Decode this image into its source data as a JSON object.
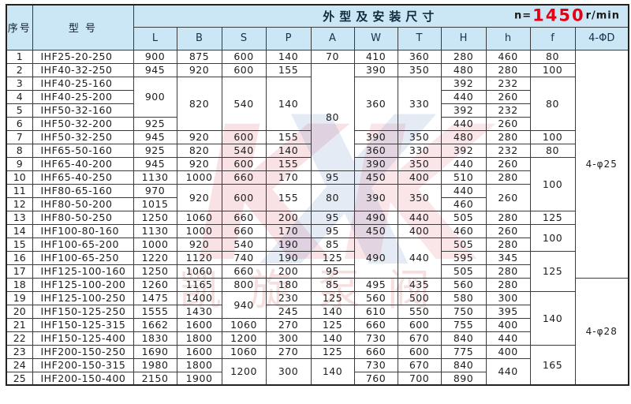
{
  "colors": {
    "header_bg": "#cbe6f5",
    "border": "#3b3b3b",
    "text": "#1d1d1d",
    "speed_red": "#e60012",
    "watermark_red": "#d7263d",
    "watermark_blue": "#2e5fb5",
    "watermark_pink": "#e08f8f"
  },
  "header": {
    "col_no": "序号",
    "col_model": "型  号",
    "dim_title": "外型及安装尺寸",
    "speed_prefix": "n=",
    "speed_value": "1450",
    "speed_suffix": "r/min",
    "dim_cols": [
      "L",
      "B",
      "S",
      "P",
      "A",
      "W",
      "T",
      "H",
      "h",
      "f",
      "4-ΦD"
    ]
  },
  "watermark": {
    "letter1": "K",
    "letter2": "X",
    "letter3": "K",
    "caption": "凯旋泵阀"
  },
  "table": {
    "rows": [
      {
        "no": "1",
        "model": "IHF25-20-250",
        "cells": [
          [
            "L",
            "900",
            1
          ],
          [
            "B",
            "875",
            1
          ],
          [
            "S",
            "600",
            1
          ],
          [
            "P",
            "140",
            1
          ],
          [
            "A",
            "70",
            1
          ],
          [
            "W",
            "410",
            1
          ],
          [
            "T",
            "360",
            1
          ],
          [
            "H",
            "280",
            1
          ],
          [
            "h",
            "460",
            1
          ],
          [
            "f",
            "80",
            1
          ],
          [
            "D",
            "4-φ25",
            17
          ]
        ]
      },
      {
        "no": "2",
        "model": "IHF40-32-250",
        "cells": [
          [
            "L",
            "945",
            1
          ],
          [
            "B",
            "920",
            1
          ],
          [
            "S",
            "600",
            1
          ],
          [
            "P",
            "155",
            1
          ],
          [
            "A",
            "80",
            8
          ],
          [
            "W",
            "390",
            1
          ],
          [
            "T",
            "350",
            1
          ],
          [
            "H",
            "480",
            1
          ],
          [
            "h",
            "280",
            1
          ],
          [
            "f",
            "100",
            1
          ]
        ]
      },
      {
        "no": "3",
        "model": "IHF40-25-160",
        "cells": [
          [
            "L",
            "900",
            3
          ],
          [
            "B",
            "820",
            4
          ],
          [
            "S",
            "540",
            4
          ],
          [
            "P",
            "140",
            4
          ],
          [
            "W",
            "360",
            4
          ],
          [
            "T",
            "330",
            4
          ],
          [
            "H",
            "392",
            1
          ],
          [
            "h",
            "232",
            1
          ],
          [
            "f",
            "80",
            4
          ]
        ]
      },
      {
        "no": "4",
        "model": "IHF40-25-200",
        "cells": [
          [
            "H",
            "440",
            1
          ],
          [
            "h",
            "260",
            1
          ]
        ]
      },
      {
        "no": "5",
        "model": "IHF50-32-160",
        "cells": [
          [
            "H",
            "392",
            1
          ],
          [
            "h",
            "232",
            1
          ]
        ]
      },
      {
        "no": "6",
        "model": "IHF50-32-200",
        "cells": [
          [
            "L",
            "925",
            1
          ],
          [
            "H",
            "440",
            1
          ],
          [
            "h",
            "260",
            1
          ]
        ]
      },
      {
        "no": "7",
        "model": "IHF50-32-250",
        "cells": [
          [
            "L",
            "945",
            1
          ],
          [
            "B",
            "920",
            1
          ],
          [
            "S",
            "600",
            1
          ],
          [
            "P",
            "155",
            1
          ],
          [
            "W",
            "390",
            1
          ],
          [
            "T",
            "350",
            1
          ],
          [
            "H",
            "480",
            1
          ],
          [
            "h",
            "280",
            1
          ],
          [
            "f",
            "100",
            1
          ]
        ]
      },
      {
        "no": "8",
        "model": "IHF65-50-160",
        "cells": [
          [
            "L",
            "925",
            1
          ],
          [
            "B",
            "820",
            1
          ],
          [
            "S",
            "540",
            1
          ],
          [
            "P",
            "140",
            1
          ],
          [
            "W",
            "360",
            1
          ],
          [
            "T",
            "330",
            1
          ],
          [
            "H",
            "392",
            1
          ],
          [
            "h",
            "232",
            1
          ],
          [
            "f",
            "80",
            1
          ]
        ]
      },
      {
        "no": "9",
        "model": "IHF65-40-200",
        "cells": [
          [
            "L",
            "945",
            1
          ],
          [
            "B",
            "920",
            1
          ],
          [
            "S",
            "600",
            1
          ],
          [
            "P",
            "155",
            1
          ],
          [
            "W",
            "390",
            1
          ],
          [
            "T",
            "350",
            1
          ],
          [
            "H",
            "440",
            1
          ],
          [
            "h",
            "260",
            1
          ],
          [
            "f",
            "100",
            4
          ]
        ]
      },
      {
        "no": "10",
        "model": "IHF65-40-250",
        "cells": [
          [
            "L",
            "1130",
            1
          ],
          [
            "B",
            "1000",
            1
          ],
          [
            "S",
            "660",
            1
          ],
          [
            "P",
            "170",
            1
          ],
          [
            "A",
            "95",
            1
          ],
          [
            "W",
            "450",
            1
          ],
          [
            "T",
            "400",
            1
          ],
          [
            "H",
            "510",
            1
          ],
          [
            "h",
            "280",
            1
          ]
        ]
      },
      {
        "no": "11",
        "model": "IHF80-65-160",
        "cells": [
          [
            "L",
            "970",
            1
          ],
          [
            "B",
            "920",
            2
          ],
          [
            "S",
            "600",
            2
          ],
          [
            "P",
            "155",
            2
          ],
          [
            "A",
            "80",
            2
          ],
          [
            "W",
            "390",
            2
          ],
          [
            "T",
            "350",
            2
          ],
          [
            "H",
            "440",
            1
          ],
          [
            "h",
            "260",
            2
          ]
        ]
      },
      {
        "no": "12",
        "model": "IHF80-50-200",
        "cells": [
          [
            "L",
            "1015",
            1
          ],
          [
            "H",
            "460",
            1
          ]
        ]
      },
      {
        "no": "13",
        "model": "IHF80-50-250",
        "cells": [
          [
            "L",
            "1250",
            1
          ],
          [
            "B",
            "1060",
            1
          ],
          [
            "S",
            "660",
            1
          ],
          [
            "P",
            "200",
            1
          ],
          [
            "A",
            "95",
            1
          ],
          [
            "W",
            "490",
            1
          ],
          [
            "T",
            "440",
            1
          ],
          [
            "H",
            "505",
            1
          ],
          [
            "h",
            "280",
            1
          ],
          [
            "f",
            "125",
            1
          ]
        ]
      },
      {
        "no": "14",
        "model": "IHF100-80-160",
        "cells": [
          [
            "L",
            "1130",
            1
          ],
          [
            "B",
            "1000",
            1
          ],
          [
            "S",
            "660",
            1
          ],
          [
            "P",
            "170",
            1
          ],
          [
            "A",
            "95",
            1
          ],
          [
            "W",
            "450",
            1
          ],
          [
            "T",
            "400",
            1
          ],
          [
            "H",
            "460",
            1
          ],
          [
            "h",
            "260",
            1
          ],
          [
            "f",
            "100",
            2
          ]
        ]
      },
      {
        "no": "15",
        "model": "IHF100-65-200",
        "cells": [
          [
            "L",
            "1000",
            1
          ],
          [
            "B",
            "920",
            1
          ],
          [
            "S",
            "540",
            1
          ],
          [
            "P",
            "190",
            1
          ],
          [
            "A",
            "85",
            1
          ],
          [
            "W",
            "490",
            3
          ],
          [
            "T",
            "440",
            3
          ],
          [
            "H",
            "505",
            1
          ],
          [
            "h",
            "280",
            1
          ]
        ]
      },
      {
        "no": "16",
        "model": "IHF100-65-250",
        "cells": [
          [
            "L",
            "1220",
            1
          ],
          [
            "B",
            "1120",
            1
          ],
          [
            "S",
            "740",
            1
          ],
          [
            "P",
            "190",
            1
          ],
          [
            "A",
            "125",
            1
          ],
          [
            "H",
            "595",
            1
          ],
          [
            "h",
            "345",
            1
          ],
          [
            "f",
            "125",
            3
          ]
        ]
      },
      {
        "no": "17",
        "model": "IHF125-100-160",
        "cells": [
          [
            "L",
            "1250",
            1
          ],
          [
            "B",
            "1060",
            1
          ],
          [
            "S",
            "660",
            1
          ],
          [
            "P",
            "200",
            1
          ],
          [
            "A",
            "95",
            1
          ],
          [
            "H",
            "505",
            1
          ],
          [
            "h",
            "280",
            1
          ]
        ]
      },
      {
        "no": "18",
        "model": "IHF125-100-200",
        "cells": [
          [
            "L",
            "1260",
            1
          ],
          [
            "B",
            "1165",
            1
          ],
          [
            "S",
            "800",
            1
          ],
          [
            "P",
            "180",
            1
          ],
          [
            "A",
            "85",
            1
          ],
          [
            "W",
            "495",
            1
          ],
          [
            "T",
            "435",
            1
          ],
          [
            "H",
            "560",
            1
          ],
          [
            "h",
            "280",
            1
          ],
          [
            "D",
            "4-φ28",
            8
          ]
        ]
      },
      {
        "no": "19",
        "model": "IHF125-100-250",
        "cells": [
          [
            "L",
            "1475",
            1
          ],
          [
            "B",
            "1400",
            1
          ],
          [
            "S",
            "940",
            2
          ],
          [
            "P",
            "230",
            1
          ],
          [
            "A",
            "125",
            1
          ],
          [
            "W",
            "560",
            1
          ],
          [
            "T",
            "500",
            1
          ],
          [
            "H",
            "580",
            1
          ],
          [
            "h",
            "300",
            1
          ],
          [
            "f",
            "140",
            4
          ]
        ]
      },
      {
        "no": "20",
        "model": "IHF150-125-250",
        "cells": [
          [
            "L",
            "1555",
            1
          ],
          [
            "B",
            "1430",
            1
          ],
          [
            "P",
            "245",
            1
          ],
          [
            "A",
            "140",
            1
          ],
          [
            "W",
            "610",
            1
          ],
          [
            "T",
            "550",
            1
          ],
          [
            "H",
            "750",
            1
          ],
          [
            "h",
            "395",
            1
          ]
        ]
      },
      {
        "no": "21",
        "model": "IHF150-125-315",
        "cells": [
          [
            "L",
            "1662",
            1
          ],
          [
            "B",
            "1600",
            1
          ],
          [
            "S",
            "1060",
            1
          ],
          [
            "P",
            "270",
            1
          ],
          [
            "A",
            "125",
            1
          ],
          [
            "W",
            "660",
            1
          ],
          [
            "T",
            "600",
            1
          ],
          [
            "H",
            "755",
            1
          ],
          [
            "h",
            "400",
            1
          ]
        ]
      },
      {
        "no": "22",
        "model": "IHF150-125-400",
        "cells": [
          [
            "L",
            "1830",
            1
          ],
          [
            "B",
            "1800",
            1
          ],
          [
            "S",
            "1200",
            1
          ],
          [
            "P",
            "300",
            1
          ],
          [
            "A",
            "140",
            1
          ],
          [
            "W",
            "730",
            1
          ],
          [
            "T",
            "670",
            1
          ],
          [
            "H",
            "840",
            1
          ],
          [
            "h",
            "440",
            1
          ]
        ]
      },
      {
        "no": "23",
        "model": "IHF200-150-250",
        "cells": [
          [
            "L",
            "1690",
            1
          ],
          [
            "B",
            "1600",
            1
          ],
          [
            "S",
            "1060",
            1
          ],
          [
            "P",
            "270",
            1
          ],
          [
            "A",
            "125",
            1
          ],
          [
            "W",
            "660",
            1
          ],
          [
            "T",
            "600",
            1
          ],
          [
            "H",
            "775",
            1
          ],
          [
            "h",
            "400",
            1
          ],
          [
            "f",
            "165",
            3
          ]
        ]
      },
      {
        "no": "24",
        "model": "IHF200-150-315",
        "cells": [
          [
            "L",
            "1980",
            1
          ],
          [
            "B",
            "1800",
            1
          ],
          [
            "S",
            "1200",
            2
          ],
          [
            "P",
            "300",
            2
          ],
          [
            "A",
            "140",
            2
          ],
          [
            "W",
            "730",
            1
          ],
          [
            "T",
            "670",
            1
          ],
          [
            "H",
            "840",
            1
          ],
          [
            "h",
            "440",
            2
          ]
        ]
      },
      {
        "no": "25",
        "model": "IHF200-150-400",
        "cells": [
          [
            "L",
            "2150",
            1
          ],
          [
            "B",
            "1900",
            1
          ],
          [
            "W",
            "760",
            1
          ],
          [
            "T",
            "700",
            1
          ],
          [
            "H",
            "890",
            1
          ]
        ]
      }
    ]
  }
}
